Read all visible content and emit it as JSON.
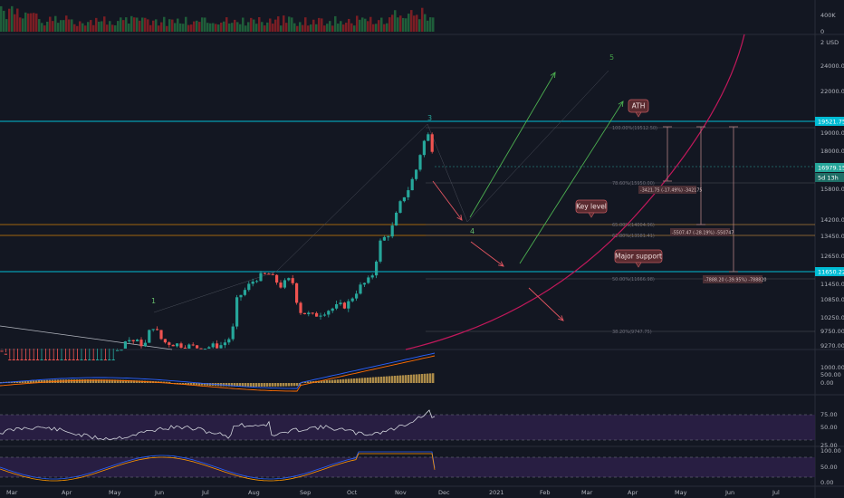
{
  "chart_data": {
    "type": "candlestick",
    "currency_label": "USD",
    "price_axis_ticks": [
      24000,
      22000,
      19000,
      18000,
      15800,
      14200,
      13450,
      12650,
      11450,
      10850,
      10250,
      9750,
      9270
    ],
    "top_tick": "2",
    "x_tick_labels": [
      "Mar",
      "Apr",
      "May",
      "Jun",
      "Jul",
      "Aug",
      "Sep",
      "Oct",
      "Nov",
      "Dec",
      "2021",
      "Feb",
      "Mar",
      "Apr",
      "May",
      "Jun",
      "Jul"
    ],
    "badges": {
      "ath": "19521.75",
      "current": "16979.15",
      "countdown": "5d 13h",
      "support": "11650.22"
    },
    "volume": {
      "ticks": [
        "400K",
        "0"
      ]
    },
    "macd": {
      "ticks": [
        "1000.00",
        "500.00",
        "0.00"
      ]
    },
    "rsi": {
      "ticks": [
        "75.00",
        "50.00",
        "25.00"
      ]
    },
    "stoch": {
      "ticks": [
        "100.00",
        "50.00",
        "0.00"
      ]
    },
    "fib_levels": [
      {
        "label": "100.00%(19512.50)",
        "price": 19512
      },
      {
        "label": "78.60%(15950.00)",
        "price": 15950
      },
      {
        "label": "65.00%(14004.96)",
        "price": 14005
      },
      {
        "label": "61.80%(13581.41)",
        "price": 13581
      },
      {
        "label": "50.00%(11666.98)",
        "price": 11667
      },
      {
        "label": "38.20%(9747.75)",
        "price": 9748
      }
    ],
    "wave_labels": [
      {
        "text": "1",
        "color": "#66bb6a"
      },
      {
        "text": "3",
        "color": "#26a69a"
      },
      {
        "text": "4",
        "color": "#66bb6a"
      },
      {
        "text": "5",
        "color": "#43a047"
      }
    ],
    "callouts": {
      "ath": "ATH",
      "key_level": "Key level",
      "major_support": "Major support"
    },
    "measurements": [
      "-3421.75 (-17.49%) -342175",
      "-5507.47 (-28.19%) -550747",
      "-7888.20 (-39.95%) -788820"
    ],
    "colors": {
      "up": "#26a69a",
      "down": "#ef5350",
      "cyan_line": "#00bcd4",
      "orange_line": "#ff9800",
      "magenta_curve": "#c2185b",
      "rsi_band": "#3a2a5c",
      "macd_line": "#2962ff",
      "signal_line": "#ff6d00"
    }
  }
}
